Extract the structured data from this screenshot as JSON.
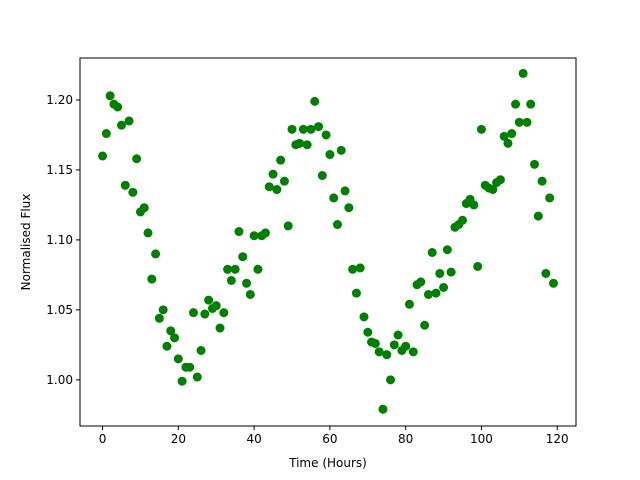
{
  "chart_data": {
    "type": "scatter",
    "x_label": "Time (Hours)",
    "y_label": "Normalised Flux",
    "color": "#008000",
    "grid": false,
    "x": [
      0,
      1,
      2,
      3,
      4,
      5,
      6,
      7,
      8,
      9,
      10,
      11,
      12,
      13,
      14,
      15,
      16,
      17,
      18,
      19,
      20,
      21,
      22,
      23,
      24,
      25,
      26,
      27,
      28,
      29,
      30,
      31,
      32,
      33,
      34,
      35,
      36,
      37,
      38,
      39,
      40,
      41,
      42,
      43,
      44,
      45,
      46,
      47,
      48,
      49,
      50,
      51,
      52,
      53,
      54,
      55,
      56,
      57,
      58,
      59,
      60,
      61,
      62,
      63,
      64,
      65,
      66,
      67,
      68,
      69,
      70,
      71,
      72,
      73,
      74,
      75,
      76,
      77,
      78,
      79,
      80,
      81,
      82,
      83,
      84,
      85,
      86,
      87,
      88,
      89,
      90,
      91,
      92,
      93,
      94,
      95,
      96,
      97,
      98,
      99,
      100,
      101,
      102,
      103,
      104,
      105,
      106,
      107,
      108,
      109,
      110,
      111,
      112,
      113,
      114,
      115,
      116,
      117,
      118,
      119
    ],
    "values": [
      1.16,
      1.176,
      1.203,
      1.197,
      1.195,
      1.182,
      1.139,
      1.185,
      1.134,
      1.158,
      1.12,
      1.123,
      1.105,
      1.072,
      1.09,
      1.044,
      1.05,
      1.024,
      1.035,
      1.03,
      1.015,
      0.999,
      1.009,
      1.009,
      1.048,
      1.002,
      1.021,
      1.047,
      1.057,
      1.051,
      1.053,
      1.037,
      1.048,
      1.079,
      1.071,
      1.079,
      1.106,
      1.088,
      1.069,
      1.061,
      1.103,
      1.079,
      1.103,
      1.105,
      1.138,
      1.147,
      1.136,
      1.157,
      1.142,
      1.11,
      1.179,
      1.168,
      1.169,
      1.179,
      1.168,
      1.179,
      1.199,
      1.181,
      1.146,
      1.175,
      1.161,
      1.13,
      1.111,
      1.164,
      1.135,
      1.123,
      1.079,
      1.062,
      1.08,
      1.045,
      1.034,
      1.027,
      1.026,
      1.02,
      0.979,
      1.018,
      1.0,
      1.025,
      1.032,
      1.021,
      1.024,
      1.054,
      1.02,
      1.068,
      1.07,
      1.039,
      1.061,
      1.091,
      1.062,
      1.076,
      1.066,
      1.093,
      1.077,
      1.109,
      1.111,
      1.114,
      1.126,
      1.129,
      1.125,
      1.081,
      1.179,
      1.139,
      1.137,
      1.136,
      1.141,
      1.143,
      1.174,
      1.169,
      1.176,
      1.197,
      1.184,
      1.219,
      1.184,
      1.197,
      1.154,
      1.117,
      1.142,
      1.076,
      1.13,
      1.069
    ],
    "xlim": [
      -5.95,
      124.95
    ],
    "ylim": [
      0.967,
      1.23
    ],
    "xticks": [
      0,
      20,
      40,
      60,
      80,
      100,
      120
    ],
    "yticks": [
      {
        "value": 1.0,
        "label": "1.00"
      },
      {
        "value": 1.05,
        "label": "1.05"
      },
      {
        "value": 1.1,
        "label": "1.10"
      },
      {
        "value": 1.15,
        "label": "1.15"
      },
      {
        "value": 1.2,
        "label": "1.20"
      }
    ]
  }
}
